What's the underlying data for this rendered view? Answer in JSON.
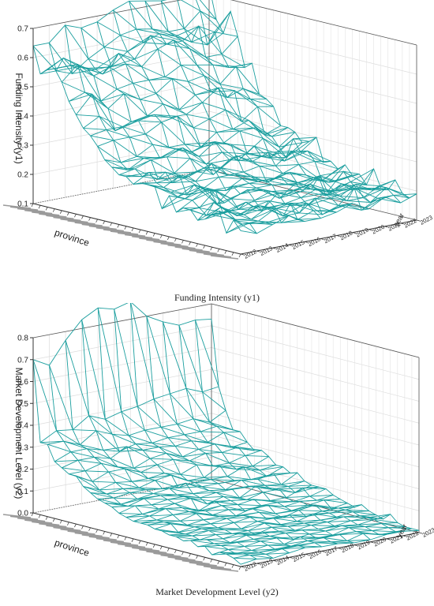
{
  "chart_data": [
    {
      "type": "surface",
      "caption": "Funding Intensity (y1)",
      "zlabel": "Funding Intensity (y1)",
      "ylabel": "year",
      "xlabel": "province",
      "zlim": [
        0.1,
        0.7
      ],
      "zticks": [
        "0.1",
        "0.2",
        "0.3",
        "0.4",
        "0.5",
        "0.6",
        "0.7"
      ],
      "years": [
        "2012",
        "2013",
        "2014",
        "2015",
        "2016",
        "2017",
        "2018",
        "2019",
        "2020",
        "2021",
        "2022",
        "2023"
      ],
      "series_color": "#1a9e9e",
      "grid": true,
      "values": [
        [
          0.64,
          0.64,
          0.69,
          0.67,
          0.68,
          0.71,
          0.73,
          0.72,
          0.71,
          0.71,
          0.72,
          0.73
        ],
        [
          0.55,
          0.55,
          0.53,
          0.57,
          0.6,
          0.63,
          0.64,
          0.63,
          0.61,
          0.61,
          0.66,
          0.62
        ],
        [
          0.57,
          0.6,
          0.56,
          0.54,
          0.54,
          0.58,
          0.6,
          0.62,
          0.6,
          0.57,
          0.55,
          0.58
        ],
        [
          0.58,
          0.58,
          0.56,
          0.53,
          0.59,
          0.56,
          0.63,
          0.59,
          0.59,
          0.63,
          0.6,
          0.66
        ],
        [
          0.54,
          0.59,
          0.54,
          0.56,
          0.56,
          0.54,
          0.59,
          0.61,
          0.57,
          0.53,
          0.53,
          0.58
        ],
        [
          0.48,
          0.5,
          0.46,
          0.49,
          0.5,
          0.5,
          0.5,
          0.53,
          0.52,
          0.51,
          0.49,
          0.48
        ],
        [
          0.44,
          0.5,
          0.44,
          0.48,
          0.45,
          0.46,
          0.5,
          0.48,
          0.49,
          0.45,
          0.5,
          0.5
        ],
        [
          0.4,
          0.43,
          0.37,
          0.39,
          0.4,
          0.43,
          0.4,
          0.44,
          0.44,
          0.41,
          0.43,
          0.4
        ],
        [
          0.38,
          0.39,
          0.39,
          0.4,
          0.41,
          0.39,
          0.39,
          0.42,
          0.46,
          0.44,
          0.4,
          0.39
        ],
        [
          0.35,
          0.36,
          0.36,
          0.36,
          0.39,
          0.4,
          0.35,
          0.37,
          0.39,
          0.34,
          0.38,
          0.37
        ],
        [
          0.31,
          0.29,
          0.3,
          0.33,
          0.31,
          0.31,
          0.29,
          0.33,
          0.33,
          0.35,
          0.29,
          0.31
        ],
        [
          0.29,
          0.27,
          0.3,
          0.29,
          0.31,
          0.29,
          0.31,
          0.3,
          0.33,
          0.33,
          0.29,
          0.31
        ],
        [
          0.27,
          0.28,
          0.3,
          0.3,
          0.32,
          0.28,
          0.32,
          0.3,
          0.26,
          0.3,
          0.26,
          0.3
        ],
        [
          0.27,
          0.26,
          0.24,
          0.25,
          0.29,
          0.26,
          0.29,
          0.25,
          0.29,
          0.24,
          0.23,
          0.27
        ],
        [
          0.25,
          0.28,
          0.27,
          0.24,
          0.25,
          0.23,
          0.27,
          0.28,
          0.26,
          0.26,
          0.3,
          0.28
        ],
        [
          0.26,
          0.25,
          0.24,
          0.25,
          0.27,
          0.26,
          0.29,
          0.26,
          0.28,
          0.24,
          0.26,
          0.3
        ],
        [
          0.26,
          0.24,
          0.27,
          0.24,
          0.29,
          0.24,
          0.24,
          0.25,
          0.24,
          0.28,
          0.27,
          0.22
        ],
        [
          0.26,
          0.23,
          0.21,
          0.22,
          0.25,
          0.25,
          0.23,
          0.2,
          0.22,
          0.24,
          0.24,
          0.23
        ],
        [
          0.19,
          0.22,
          0.25,
          0.22,
          0.21,
          0.24,
          0.22,
          0.22,
          0.23,
          0.21,
          0.18,
          0.21
        ],
        [
          0.24,
          0.22,
          0.25,
          0.18,
          0.23,
          0.23,
          0.23,
          0.23,
          0.2,
          0.2,
          0.18,
          0.23
        ],
        [
          0.19,
          0.22,
          0.25,
          0.19,
          0.21,
          0.22,
          0.22,
          0.21,
          0.2,
          0.22,
          0.19,
          0.2
        ],
        [
          0.21,
          0.2,
          0.25,
          0.21,
          0.23,
          0.22,
          0.18,
          0.22,
          0.19,
          0.17,
          0.23,
          0.21
        ],
        [
          0.21,
          0.18,
          0.18,
          0.18,
          0.2,
          0.22,
          0.2,
          0.2,
          0.24,
          0.18,
          0.2,
          0.18
        ],
        [
          0.18,
          0.23,
          0.19,
          0.21,
          0.17,
          0.22,
          0.22,
          0.23,
          0.18,
          0.21,
          0.18,
          0.24
        ],
        [
          0.19,
          0.22,
          0.18,
          0.2,
          0.21,
          0.19,
          0.2,
          0.22,
          0.2,
          0.2,
          0.19,
          0.18
        ],
        [
          0.21,
          0.21,
          0.19,
          0.21,
          0.19,
          0.19,
          0.18,
          0.21,
          0.19,
          0.22,
          0.19,
          0.18
        ],
        [
          0.23,
          0.19,
          0.18,
          0.21,
          0.17,
          0.17,
          0.21,
          0.2,
          0.18,
          0.18,
          0.21,
          0.22
        ],
        [
          0.16,
          0.18,
          0.18,
          0.21,
          0.22,
          0.21,
          0.16,
          0.18,
          0.23,
          0.17,
          0.21,
          0.18
        ],
        [
          0.21,
          0.19,
          0.18,
          0.17,
          0.17,
          0.19,
          0.18,
          0.19,
          0.16,
          0.19,
          0.19,
          0.17
        ],
        [
          0.18,
          0.16,
          0.18,
          0.2,
          0.17,
          0.17,
          0.18,
          0.2,
          0.17,
          0.2,
          0.17,
          0.19
        ]
      ]
    },
    {
      "type": "surface",
      "caption": "Market Development Level (y2)",
      "zlabel": "Market Development Level (y2)",
      "ylabel": "year",
      "xlabel": "province",
      "zlim": [
        0.0,
        0.8
      ],
      "zticks": [
        "0.0",
        "0.1",
        "0.2",
        "0.3",
        "0.4",
        "0.5",
        "0.6",
        "0.7",
        "0.8"
      ],
      "years": [
        "2012",
        "2013",
        "2014",
        "2015",
        "2016",
        "2017",
        "2018",
        "2019",
        "2020",
        "2021",
        "2022",
        "2023"
      ],
      "series_color": "#1a9e9e",
      "grid": true,
      "values": [
        [
          0.7,
          0.66,
          0.76,
          0.84,
          0.88,
          0.86,
          0.88,
          0.8,
          0.76,
          0.73,
          0.74,
          0.73
        ],
        [
          0.33,
          0.37,
          0.36,
          0.41,
          0.38,
          0.4,
          0.41,
          0.43,
          0.44,
          0.45,
          0.42,
          0.43
        ],
        [
          0.33,
          0.33,
          0.3,
          0.35,
          0.32,
          0.3,
          0.31,
          0.31,
          0.31,
          0.32,
          0.29,
          0.33
        ],
        [
          0.26,
          0.29,
          0.29,
          0.27,
          0.25,
          0.27,
          0.26,
          0.27,
          0.27,
          0.27,
          0.28,
          0.25
        ],
        [
          0.24,
          0.26,
          0.26,
          0.24,
          0.28,
          0.25,
          0.25,
          0.24,
          0.25,
          0.23,
          0.26,
          0.25
        ],
        [
          0.22,
          0.22,
          0.24,
          0.21,
          0.19,
          0.22,
          0.23,
          0.2,
          0.22,
          0.23,
          0.2,
          0.21
        ],
        [
          0.22,
          0.18,
          0.21,
          0.21,
          0.18,
          0.2,
          0.21,
          0.19,
          0.21,
          0.2,
          0.21,
          0.18
        ],
        [
          0.18,
          0.15,
          0.17,
          0.16,
          0.16,
          0.17,
          0.15,
          0.18,
          0.16,
          0.16,
          0.18,
          0.19
        ],
        [
          0.16,
          0.14,
          0.15,
          0.14,
          0.16,
          0.17,
          0.13,
          0.13,
          0.17,
          0.14,
          0.14,
          0.17
        ],
        [
          0.14,
          0.13,
          0.14,
          0.14,
          0.13,
          0.12,
          0.13,
          0.13,
          0.13,
          0.16,
          0.13,
          0.14
        ],
        [
          0.13,
          0.11,
          0.12,
          0.13,
          0.14,
          0.15,
          0.12,
          0.12,
          0.12,
          0.11,
          0.11,
          0.14
        ],
        [
          0.12,
          0.11,
          0.13,
          0.13,
          0.12,
          0.11,
          0.11,
          0.1,
          0.13,
          0.12,
          0.13,
          0.12
        ],
        [
          0.1,
          0.12,
          0.11,
          0.12,
          0.12,
          0.1,
          0.11,
          0.11,
          0.11,
          0.1,
          0.09,
          0.13
        ],
        [
          0.09,
          0.09,
          0.1,
          0.11,
          0.12,
          0.08,
          0.1,
          0.08,
          0.12,
          0.09,
          0.09,
          0.1
        ],
        [
          0.08,
          0.09,
          0.11,
          0.1,
          0.07,
          0.1,
          0.09,
          0.08,
          0.1,
          0.1,
          0.07,
          0.09
        ],
        [
          0.08,
          0.08,
          0.09,
          0.09,
          0.08,
          0.09,
          0.08,
          0.09,
          0.07,
          0.07,
          0.1,
          0.09
        ],
        [
          0.08,
          0.08,
          0.07,
          0.09,
          0.07,
          0.08,
          0.06,
          0.07,
          0.07,
          0.06,
          0.07,
          0.09
        ],
        [
          0.07,
          0.08,
          0.06,
          0.07,
          0.07,
          0.06,
          0.08,
          0.08,
          0.06,
          0.07,
          0.06,
          0.07
        ],
        [
          0.07,
          0.05,
          0.06,
          0.06,
          0.07,
          0.07,
          0.07,
          0.05,
          0.05,
          0.06,
          0.07,
          0.06
        ],
        [
          0.06,
          0.05,
          0.06,
          0.05,
          0.06,
          0.07,
          0.05,
          0.04,
          0.06,
          0.07,
          0.04,
          0.05
        ],
        [
          0.06,
          0.05,
          0.06,
          0.05,
          0.04,
          0.06,
          0.06,
          0.06,
          0.04,
          0.05,
          0.05,
          0.04
        ],
        [
          0.05,
          0.04,
          0.05,
          0.04,
          0.04,
          0.06,
          0.04,
          0.04,
          0.06,
          0.05,
          0.05,
          0.06
        ],
        [
          0.06,
          0.05,
          0.04,
          0.05,
          0.03,
          0.05,
          0.04,
          0.04,
          0.04,
          0.04,
          0.05,
          0.04
        ],
        [
          0.04,
          0.04,
          0.03,
          0.05,
          0.05,
          0.04,
          0.03,
          0.04,
          0.04,
          0.05,
          0.04,
          0.03
        ],
        [
          0.05,
          0.04,
          0.04,
          0.04,
          0.04,
          0.04,
          0.04,
          0.03,
          0.03,
          0.04,
          0.04,
          0.02
        ],
        [
          0.02,
          0.03,
          0.03,
          0.04,
          0.04,
          0.02,
          0.03,
          0.03,
          0.04,
          0.03,
          0.04,
          0.05
        ],
        [
          0.04,
          0.02,
          0.02,
          0.03,
          0.02,
          0.04,
          0.02,
          0.02,
          0.04,
          0.03,
          0.03,
          0.02
        ],
        [
          0.04,
          0.03,
          0.02,
          0.02,
          0.02,
          0.03,
          0.03,
          0.03,
          0.03,
          0.02,
          0.02,
          0.01
        ],
        [
          0.03,
          0.03,
          0.02,
          0.03,
          0.03,
          0.03,
          0.02,
          0.01,
          0.03,
          0.01,
          0.01,
          0.01
        ],
        [
          0.01,
          0.02,
          0.01,
          0.02,
          0.03,
          0.02,
          0.02,
          0.01,
          0.01,
          0.02,
          0.02,
          0.01
        ]
      ]
    }
  ]
}
